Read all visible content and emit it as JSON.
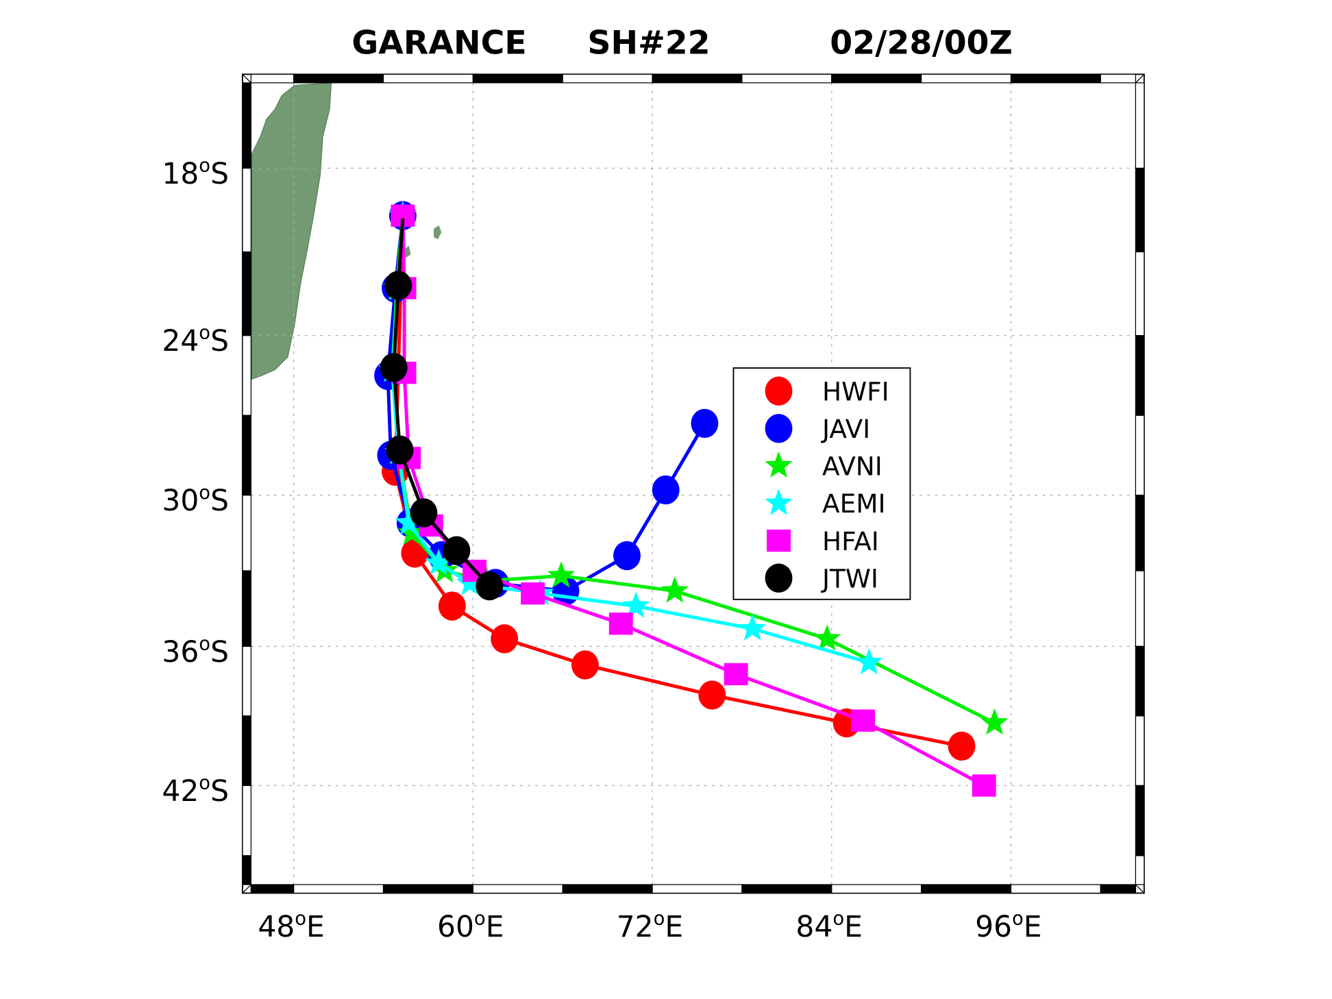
{
  "chart_data": {
    "type": "line",
    "title": {
      "storm": "GARANCE",
      "id": "SH#22",
      "time": "02/28/00Z"
    },
    "xlabel": "",
    "ylabel": "",
    "projection": "map",
    "xlim_lon_east": [
      44.6,
      104.9
    ],
    "ylim_lat_south": [
      14.6,
      46.6
    ],
    "x_ticks": [
      {
        "value": 48,
        "label": "48",
        "suffix": "E"
      },
      {
        "value": 60,
        "label": "60",
        "suffix": "E"
      },
      {
        "value": 72,
        "label": "72",
        "suffix": "E"
      },
      {
        "value": 84,
        "label": "84",
        "suffix": "E"
      },
      {
        "value": 96,
        "label": "96",
        "suffix": "E"
      }
    ],
    "y_ticks": [
      {
        "value": 18,
        "label": "18",
        "suffix": "S"
      },
      {
        "value": 24,
        "label": "24",
        "suffix": "S"
      },
      {
        "value": 30,
        "label": "30",
        "suffix": "S"
      },
      {
        "value": 36,
        "label": "36",
        "suffix": "S"
      },
      {
        "value": 42,
        "label": "42",
        "suffix": "S"
      }
    ],
    "degree_symbol": "o",
    "grid": true,
    "legend_position": "center-right",
    "series": [
      {
        "name": "HWFI",
        "color": "#ff0000",
        "marker": "circle",
        "lon": [
          55.3,
          54.8,
          56.1,
          58.6,
          62.1,
          67.5,
          76.0,
          85.0,
          92.7
        ],
        "lat_s": [
          19.7,
          29.1,
          32.3,
          34.4,
          35.7,
          36.8,
          38.1,
          39.3,
          40.3
        ]
      },
      {
        "name": "JAVI",
        "color": "#0000ff",
        "marker": "circle",
        "lon": [
          55.3,
          54.8,
          54.3,
          54.5,
          55.8,
          57.9,
          61.5,
          66.2,
          70.3,
          72.9,
          75.5
        ],
        "lat_s": [
          19.7,
          22.3,
          25.5,
          28.5,
          31.1,
          32.4,
          33.5,
          33.8,
          32.4,
          29.8,
          27.3
        ]
      },
      {
        "name": "AVNI",
        "color": "#00ee00",
        "marker": "star",
        "lon": [
          55.3,
          54.9,
          54.6,
          55.0,
          55.9,
          58.1,
          60.9,
          65.9,
          73.5,
          83.7,
          94.9
        ],
        "lat_s": [
          19.7,
          22.3,
          25.3,
          28.4,
          31.5,
          33.0,
          33.4,
          33.2,
          33.8,
          35.7,
          39.3
        ]
      },
      {
        "name": "AEMI",
        "color": "#00ffff",
        "marker": "star",
        "lon": [
          55.3,
          55.0,
          54.6,
          55.0,
          55.7,
          57.7,
          59.8,
          64.5,
          70.9,
          78.7,
          86.5
        ],
        "lat_s": [
          19.7,
          22.3,
          25.3,
          28.4,
          31.1,
          32.7,
          33.5,
          33.9,
          34.4,
          35.3,
          36.7
        ]
      },
      {
        "name": "HFAI",
        "color": "#ff00ff",
        "marker": "square",
        "lon": [
          55.3,
          55.4,
          55.4,
          55.7,
          57.2,
          60.1,
          64.0,
          69.9,
          77.6,
          86.1,
          94.2
        ],
        "lat_s": [
          19.7,
          22.3,
          25.4,
          28.6,
          31.2,
          33.0,
          33.9,
          35.1,
          37.2,
          39.2,
          42.0
        ]
      },
      {
        "name": "JTWI",
        "color": "#000000",
        "marker": "circle",
        "first_point_marker": false,
        "lon": [
          55.3,
          55.0,
          54.7,
          55.1,
          56.7,
          58.9,
          61.1
        ],
        "lat_s": [
          19.8,
          22.2,
          25.2,
          28.3,
          30.7,
          32.2,
          33.6
        ]
      }
    ],
    "land_color": "#739a73"
  }
}
